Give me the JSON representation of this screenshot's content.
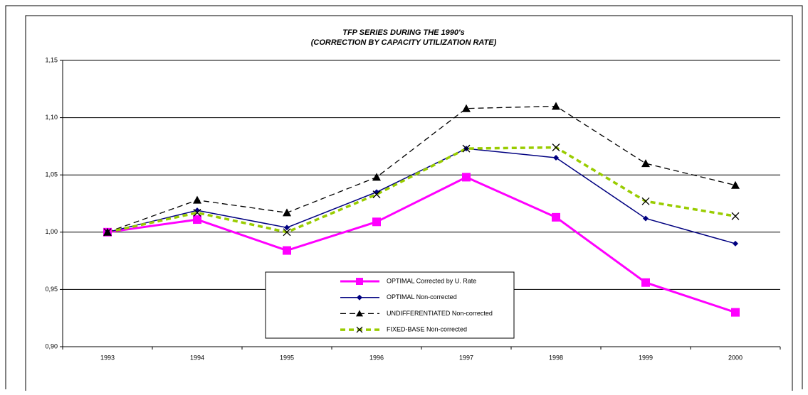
{
  "chart_data": {
    "type": "line",
    "title": "TFP SERIES DURING THE 1990's",
    "subtitle": "(CORRECTION BY CAPACITY UTILIZATION RATE)",
    "categories": [
      "1993",
      "1994",
      "1995",
      "1996",
      "1997",
      "1998",
      "1999",
      "2000"
    ],
    "ylim": [
      0.9,
      1.15
    ],
    "yticks": [
      {
        "value": 0.9,
        "label": "0,90"
      },
      {
        "value": 0.95,
        "label": "0,95"
      },
      {
        "value": 1.0,
        "label": "1,00"
      },
      {
        "value": 1.05,
        "label": "1,05"
      },
      {
        "value": 1.1,
        "label": "1,10"
      },
      {
        "value": 1.15,
        "label": "1,15"
      }
    ],
    "grid": true,
    "legend": "bottom-center",
    "series": [
      {
        "name": "OPTIMAL Corrected by U. Rate",
        "color": "#ff00ff",
        "marker": "square",
        "dash": "solid",
        "values": [
          1.0,
          1.011,
          0.984,
          1.009,
          1.048,
          1.013,
          0.956,
          0.93
        ]
      },
      {
        "name": "OPTIMAL Non-corrected",
        "color": "#000080",
        "marker": "diamond",
        "dash": "solid",
        "values": [
          1.0,
          1.019,
          1.004,
          1.035,
          1.073,
          1.065,
          1.012,
          0.99
        ]
      },
      {
        "name": "UNDIFFERENTIATED Non-corrected",
        "color": "#000000",
        "marker": "triangle",
        "dash": "dashed",
        "values": [
          1.0,
          1.028,
          1.017,
          1.048,
          1.108,
          1.11,
          1.06,
          1.041
        ]
      },
      {
        "name": "FIXED-BASE Non-corrected",
        "color": "#99cc00",
        "marker": "x",
        "dash": "dotted",
        "values": [
          1.0,
          1.017,
          1.0,
          1.033,
          1.073,
          1.074,
          1.027,
          1.014
        ]
      }
    ]
  }
}
